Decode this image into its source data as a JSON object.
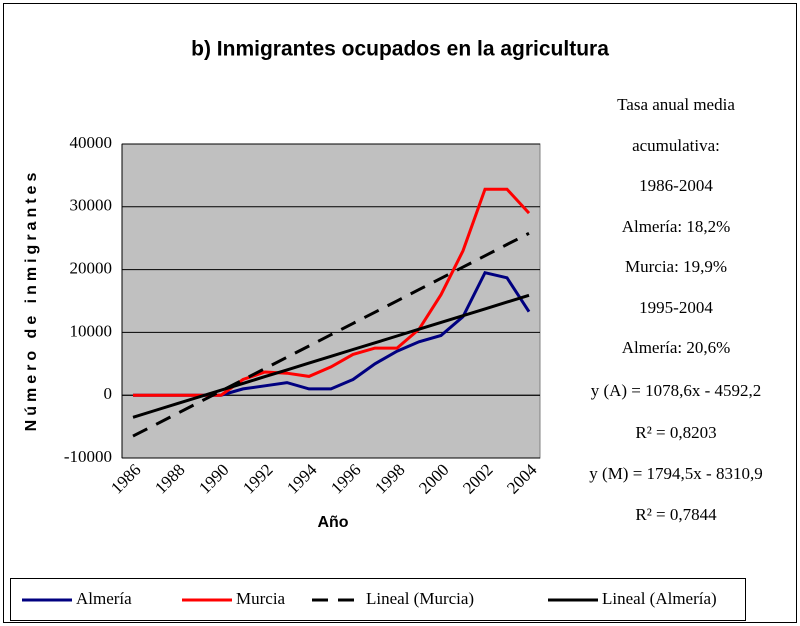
{
  "chart_data": {
    "type": "line",
    "title": "b) Inmigrantes ocupados en la agricultura",
    "x_label": "Año",
    "y_label": "Número de inmigrantes",
    "categories": [
      "1986",
      null,
      "1988",
      null,
      "1990",
      null,
      "1992",
      null,
      "1994",
      null,
      "1996",
      null,
      "1998",
      null,
      "2000",
      null,
      "2002",
      null,
      "2004"
    ],
    "series": [
      {
        "name": "Almería",
        "color": "#000080",
        "dash": "solid",
        "values": [
          0,
          0,
          0,
          0,
          0,
          1000,
          1500,
          2000,
          1000,
          1000,
          2500,
          5000,
          7000,
          8500,
          9500,
          12500,
          19500,
          18700,
          13300
        ]
      },
      {
        "name": "Murcia",
        "color": "#ff0000",
        "dash": "solid",
        "values": [
          0,
          0,
          0,
          0,
          0,
          2500,
          3700,
          3500,
          3000,
          4500,
          6500,
          7500,
          7500,
          10500,
          16000,
          23000,
          32800,
          32800,
          29000
        ]
      },
      {
        "name": "Lineal (Murcia)",
        "color": "#000000",
        "dash": "dashed",
        "values": [
          -6516,
          -4722,
          -2927,
          -1133,
          662,
          2456,
          4251,
          6045,
          7840,
          9634,
          11429,
          13223,
          15018,
          16812,
          18607,
          20401,
          22196,
          23990,
          25785
        ]
      },
      {
        "name": "Lineal (Almería)",
        "color": "#000000",
        "dash": "solid",
        "values": [
          -3514,
          -2435,
          -1356,
          -278,
          801,
          1879,
          2958,
          4036,
          5115,
          6194,
          7272,
          8351,
          9429,
          10508,
          11587,
          12665,
          13744,
          14822,
          15901
        ]
      }
    ],
    "ylim": [
      -10000,
      40000
    ],
    "yticks": [
      -10000,
      0,
      10000,
      20000,
      30000,
      40000
    ],
    "grid": true,
    "plot_background": "#c0c0c0",
    "legend": "bottom",
    "annotations": [
      "Tasa anual media",
      "acumulativa:",
      "1986-2004",
      "Almería: 18,2%",
      "Murcia: 19,9%",
      "1995-2004",
      "Almería: 20,6%",
      "y (A) = 1078,6x - 4592,2",
      "R² = 0,8203",
      "y (M) = 1794,5x - 8310,9",
      "R² = 0,7844"
    ]
  }
}
